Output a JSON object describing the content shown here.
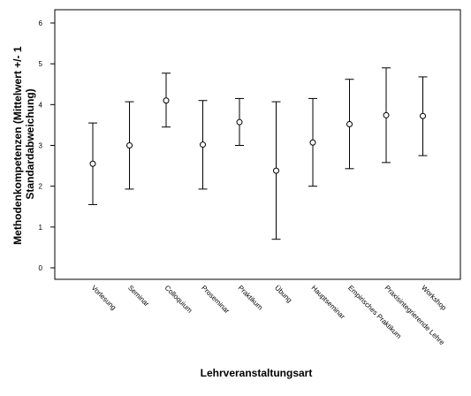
{
  "chart_data": {
    "type": "errorbar",
    "xlabel": "Lehrveranstaltungsart",
    "ylabel_lines": [
      "Methodenkompetenzen (Mittelwert +/- 1",
      "Standardabweichung)"
    ],
    "ylim": [
      0,
      6
    ],
    "yticks": [
      0,
      1,
      2,
      3,
      4,
      5,
      6
    ],
    "ytick_labels": [
      "0",
      "1",
      "2",
      "3",
      "4",
      "5",
      "6"
    ],
    "grid": false,
    "legend": "none",
    "categories": [
      "Vorlesung",
      "Seminar",
      "Colloquium",
      "Proseminar",
      "Praktikum",
      "Übung",
      "Hauptseminar",
      "Empirisches Praktikum",
      "Praxisintegrierende Lehre",
      "Workshop"
    ],
    "means": [
      2.55,
      3.0,
      4.1,
      3.02,
      3.57,
      2.38,
      3.07,
      3.52,
      3.74,
      3.72
    ],
    "lower": [
      1.55,
      1.93,
      3.45,
      1.93,
      3.0,
      0.7,
      2.0,
      2.43,
      2.58,
      2.75
    ],
    "upper": [
      3.55,
      4.07,
      4.77,
      4.1,
      4.15,
      4.07,
      4.15,
      4.62,
      4.9,
      4.68
    ]
  }
}
